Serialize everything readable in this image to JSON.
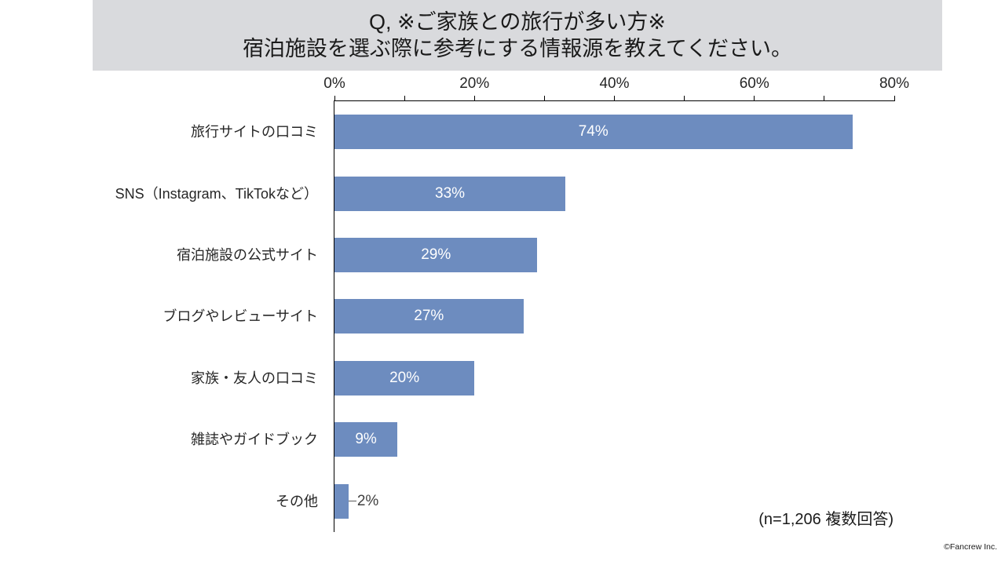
{
  "title": {
    "line1": "Q, ※ご家族との旅行が多い方※",
    "line2": "宿泊施設を選ぶ際に参考にする情報源を教えてください。"
  },
  "note": "(n=1,206 複数回答)",
  "footer": "©Fancrew Inc.",
  "colors": {
    "bar": "#6D8CBF",
    "title_band_bg": "#D9DADD",
    "label_inside": "#FFFFFF",
    "label_outside": "#3F3F3F",
    "axis_line": "#000000"
  },
  "chart_data": {
    "type": "bar",
    "orientation": "horizontal",
    "title": "Q, ※ご家族との旅行が多い方※ 宿泊施設を選ぶ際に参考にする情報源を教えてください。",
    "categories": [
      "旅行サイトの口コミ",
      "SNS（Instagram、TikTokなど）",
      "宿泊施設の公式サイト",
      "ブログやレビューサイト",
      "家族・友人の口コミ",
      "雑誌やガイドブック",
      "その他"
    ],
    "values": [
      74,
      33,
      29,
      27,
      20,
      9,
      2
    ],
    "value_labels": [
      "74%",
      "33%",
      "29%",
      "27%",
      "20%",
      "9%",
      "2%"
    ],
    "label_positions": [
      "inside",
      "inside",
      "inside",
      "inside",
      "inside",
      "inside",
      "outside"
    ],
    "axis": {
      "min": 0,
      "max": 80,
      "minor_tick_step": 10,
      "labeled_tick_step": 20,
      "tick_labels": [
        "0%",
        "20%",
        "40%",
        "60%",
        "80%"
      ],
      "position": "top"
    },
    "grid": false,
    "legend": false,
    "annotation": "(n=1,206 複数回答)"
  }
}
